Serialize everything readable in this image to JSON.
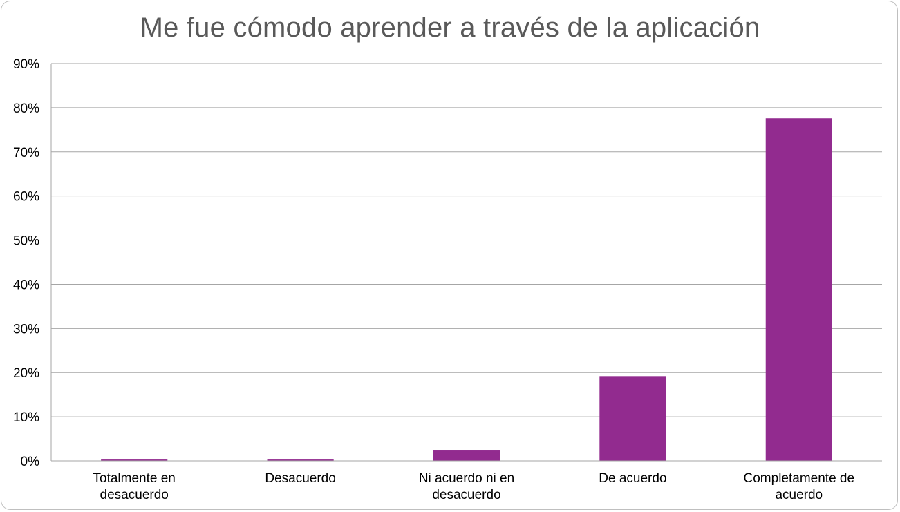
{
  "chart_data": {
    "type": "bar",
    "title": "Me fue cómodo aprender a través de la aplicación",
    "categories": [
      [
        "Totalmente en",
        "desacuerdo"
      ],
      [
        "Desacuerdo"
      ],
      [
        "Ni acuerdo ni en",
        "desacuerdo"
      ],
      [
        "De acuerdo"
      ],
      [
        "Completamente de",
        "acuerdo"
      ]
    ],
    "values": [
      0.3,
      0.3,
      2.5,
      19.2,
      77.6
    ],
    "ylim": [
      0,
      90
    ],
    "yticks": [
      0,
      10,
      20,
      30,
      40,
      50,
      60,
      70,
      80,
      90
    ],
    "ytick_suffix": "%",
    "grid": true,
    "legend": "none",
    "bar_color": "#922b8f",
    "grid_color": "#a6a6a6"
  }
}
